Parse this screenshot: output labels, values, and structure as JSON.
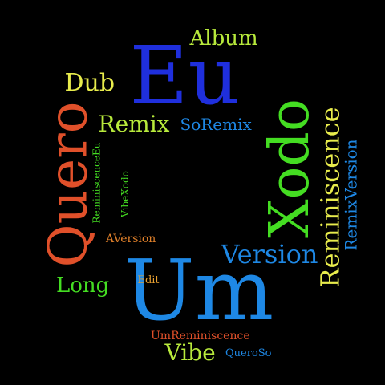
{
  "words": [
    {
      "text": "Eu",
      "color": "#1f2fdd"
    },
    {
      "text": "Um",
      "color": "#1e88e5"
    },
    {
      "text": "Xodo",
      "color": "#44dd22"
    },
    {
      "text": "Quero",
      "color": "#e0502a"
    },
    {
      "text": "Reminiscence",
      "color": "#e8ec4c"
    },
    {
      "text": "Version",
      "color": "#1e88e5"
    },
    {
      "text": "Album",
      "color": "#b8ea3c"
    },
    {
      "text": "Dub",
      "color": "#e8ec4c"
    },
    {
      "text": "Remix",
      "color": "#b8ea3c"
    },
    {
      "text": "SoRemix",
      "color": "#1e88e5"
    },
    {
      "text": "RemixVersion",
      "color": "#1e88e5"
    },
    {
      "text": "Long",
      "color": "#44dd22"
    },
    {
      "text": "Vibe",
      "color": "#b8ea3c"
    },
    {
      "text": "ReminiscenceEu",
      "color": "#44dd22"
    },
    {
      "text": "VibeXodo",
      "color": "#44dd22"
    },
    {
      "text": "AVersion",
      "color": "#e0802a"
    },
    {
      "text": "Edit",
      "color": "#e8a030"
    },
    {
      "text": "UmReminiscence",
      "color": "#e0502a"
    },
    {
      "text": "QueroSo",
      "color": "#1e88e5"
    }
  ]
}
